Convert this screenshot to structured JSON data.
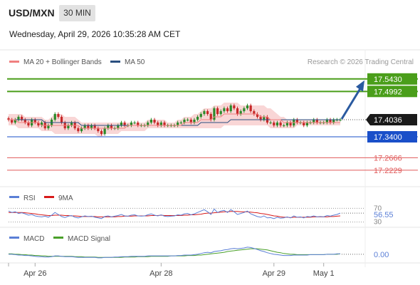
{
  "header": {
    "symbol": "USD/MXN",
    "interval": "30 MIN",
    "datetime": "Wednesday, April 29, 2026 10:35:28 AM CET"
  },
  "legend": {
    "ma20": "MA 20 + Bollinger Bands",
    "ma50": "MA 50",
    "copyright": "Research © 2026 Trading Central"
  },
  "colors": {
    "resistance": "#4a9e1a",
    "pivot": "#1a4fc9",
    "support": "#e05a5a",
    "ma20": "#f08080",
    "ma50": "#2a4f80",
    "band": "#f7c8c8",
    "candle_up": "#2a8a2a",
    "candle_down": "#c62828",
    "arrow": "#2a5aa0",
    "rsi": "#5b7fd6",
    "rsi_ma": "#d81b1b",
    "macd": "#5b7fd6",
    "macd_signal": "#4aa02a"
  },
  "chart_data": [
    {
      "type": "candlestick",
      "ylim": [
        17.18,
        17.57
      ],
      "current_price": "17.4036",
      "levels": [
        {
          "label": "17.5430",
          "value": 17.543,
          "kind": "resistance"
        },
        {
          "label": "17.4992",
          "value": 17.4992,
          "kind": "resistance"
        },
        {
          "label": "17.3400",
          "value": 17.34,
          "kind": "pivot"
        },
        {
          "label": "17.2666",
          "value": 17.2666,
          "kind": "support"
        },
        {
          "label": "17.2229",
          "value": 17.2229,
          "kind": "support"
        }
      ],
      "x_ticks": [
        "Apr 26",
        "Apr 28",
        "Apr 29",
        "May 1"
      ],
      "closes": [
        17.4,
        17.39,
        17.4,
        17.41,
        17.4,
        17.39,
        17.38,
        17.4,
        17.39,
        17.38,
        17.39,
        17.37,
        17.38,
        17.4,
        17.42,
        17.41,
        17.39,
        17.37,
        17.38,
        17.39,
        17.37,
        17.36,
        17.37,
        17.38,
        17.37,
        17.38,
        17.37,
        17.36,
        17.35,
        17.37,
        17.38,
        17.37,
        17.37,
        17.38,
        17.39,
        17.38,
        17.38,
        17.39,
        17.39,
        17.38,
        17.38,
        17.38,
        17.39,
        17.4,
        17.39,
        17.38,
        17.39,
        17.38,
        17.38,
        17.38,
        17.38,
        17.39,
        17.39,
        17.4,
        17.4,
        17.39,
        17.4,
        17.41,
        17.42,
        17.43,
        17.42,
        17.4,
        17.44,
        17.42,
        17.43,
        17.44,
        17.43,
        17.45,
        17.44,
        17.42,
        17.43,
        17.44,
        17.45,
        17.43,
        17.42,
        17.41,
        17.4,
        17.41,
        17.39,
        17.39,
        17.38,
        17.39,
        17.38,
        17.38,
        17.39,
        17.38,
        17.4,
        17.39,
        17.39,
        17.38,
        17.39,
        17.39,
        17.4,
        17.39,
        17.39,
        17.39,
        17.4,
        17.39,
        17.4,
        17.4,
        17.4
      ],
      "ma20_series": [
        17.4,
        17.4,
        17.4,
        17.39,
        17.39,
        17.39,
        17.39,
        17.39,
        17.39,
        17.39,
        17.38,
        17.38,
        17.38,
        17.38,
        17.38,
        17.38,
        17.38,
        17.38,
        17.38,
        17.38,
        17.38,
        17.38,
        17.37,
        17.37,
        17.37,
        17.37,
        17.37,
        17.37,
        17.37,
        17.37,
        17.37,
        17.37,
        17.37,
        17.37,
        17.37,
        17.37,
        17.38,
        17.38,
        17.38,
        17.38,
        17.38,
        17.38,
        17.38,
        17.38,
        17.38,
        17.38,
        17.38,
        17.38,
        17.38,
        17.38,
        17.38,
        17.38,
        17.38,
        17.39,
        17.39,
        17.39,
        17.39,
        17.39,
        17.4,
        17.4,
        17.4,
        17.4,
        17.41,
        17.41,
        17.41,
        17.42,
        17.42,
        17.42,
        17.42,
        17.42,
        17.42,
        17.42,
        17.42,
        17.42,
        17.42,
        17.42,
        17.41,
        17.41,
        17.41,
        17.4,
        17.4,
        17.4,
        17.4,
        17.39,
        17.39,
        17.39,
        17.39,
        17.39,
        17.39,
        17.39,
        17.39,
        17.39,
        17.39,
        17.39,
        17.39,
        17.39,
        17.39,
        17.39,
        17.39,
        17.39,
        17.39
      ],
      "ma50_series": [
        17.4,
        17.4,
        17.4,
        17.4,
        17.4,
        17.4,
        17.4,
        17.4,
        17.4,
        17.4,
        17.4,
        17.39,
        17.39,
        17.39,
        17.39,
        17.39,
        17.39,
        17.39,
        17.39,
        17.39,
        17.39,
        17.39,
        17.38,
        17.38,
        17.38,
        17.38,
        17.38,
        17.38,
        17.38,
        17.38,
        17.38,
        17.38,
        17.38,
        17.38,
        17.38,
        17.38,
        17.38,
        17.38,
        17.38,
        17.38,
        17.38,
        17.38,
        17.38,
        17.38,
        17.38,
        17.38,
        17.38,
        17.38,
        17.38,
        17.38,
        17.38,
        17.38,
        17.38,
        17.38,
        17.38,
        17.38,
        17.38,
        17.38,
        17.39,
        17.39,
        17.39,
        17.39,
        17.39,
        17.39,
        17.39,
        17.39,
        17.39,
        17.4,
        17.4,
        17.4,
        17.4,
        17.4,
        17.4,
        17.4,
        17.4,
        17.4,
        17.4,
        17.4,
        17.4,
        17.4,
        17.4,
        17.4,
        17.4,
        17.4,
        17.4,
        17.4,
        17.4,
        17.4,
        17.4,
        17.4,
        17.4,
        17.4,
        17.4,
        17.4,
        17.4,
        17.4,
        17.4,
        17.4,
        17.4,
        17.4,
        17.4
      ],
      "band_upper": [
        17.42,
        17.42,
        17.42,
        17.42,
        17.42,
        17.41,
        17.41,
        17.41,
        17.41,
        17.41,
        17.41,
        17.4,
        17.4,
        17.41,
        17.42,
        17.42,
        17.42,
        17.41,
        17.41,
        17.41,
        17.41,
        17.4,
        17.39,
        17.39,
        17.39,
        17.39,
        17.39,
        17.39,
        17.39,
        17.39,
        17.39,
        17.39,
        17.39,
        17.39,
        17.39,
        17.39,
        17.39,
        17.39,
        17.39,
        17.39,
        17.39,
        17.39,
        17.4,
        17.4,
        17.4,
        17.4,
        17.4,
        17.4,
        17.39,
        17.39,
        17.39,
        17.4,
        17.4,
        17.41,
        17.41,
        17.41,
        17.42,
        17.42,
        17.43,
        17.44,
        17.44,
        17.44,
        17.45,
        17.45,
        17.45,
        17.46,
        17.46,
        17.46,
        17.46,
        17.46,
        17.45,
        17.45,
        17.45,
        17.45,
        17.45,
        17.45,
        17.45,
        17.45,
        17.44,
        17.44,
        17.43,
        17.42,
        17.41,
        17.41,
        17.4,
        17.4,
        17.4,
        17.4,
        17.4,
        17.4,
        17.4,
        17.4,
        17.4,
        17.4,
        17.4,
        17.4,
        17.4,
        17.4,
        17.4,
        17.4,
        17.4
      ],
      "band_lower": [
        17.38,
        17.38,
        17.38,
        17.37,
        17.37,
        17.37,
        17.37,
        17.37,
        17.37,
        17.37,
        17.36,
        17.36,
        17.36,
        17.36,
        17.35,
        17.35,
        17.35,
        17.35,
        17.35,
        17.35,
        17.35,
        17.35,
        17.35,
        17.35,
        17.35,
        17.35,
        17.35,
        17.34,
        17.34,
        17.35,
        17.35,
        17.35,
        17.35,
        17.35,
        17.36,
        17.36,
        17.36,
        17.36,
        17.36,
        17.36,
        17.36,
        17.36,
        17.37,
        17.37,
        17.37,
        17.37,
        17.37,
        17.37,
        17.37,
        17.37,
        17.37,
        17.37,
        17.37,
        17.37,
        17.37,
        17.37,
        17.37,
        17.37,
        17.37,
        17.37,
        17.37,
        17.37,
        17.37,
        17.37,
        17.37,
        17.38,
        17.38,
        17.38,
        17.38,
        17.38,
        17.38,
        17.38,
        17.38,
        17.38,
        17.38,
        17.38,
        17.38,
        17.38,
        17.38,
        17.37,
        17.37,
        17.37,
        17.37,
        17.37,
        17.37,
        17.37,
        17.37,
        17.38,
        17.38,
        17.38,
        17.38,
        17.38,
        17.38,
        17.38,
        17.38,
        17.38,
        17.38,
        17.38,
        17.38,
        17.38,
        17.38
      ]
    },
    {
      "type": "line",
      "name": "RSI",
      "legend": [
        "RSI",
        "9MA"
      ],
      "ylim": [
        25,
        75
      ],
      "y_ticks": [
        "70",
        "30"
      ],
      "current_value": "56.55",
      "rsi_series": [
        62,
        58,
        60,
        55,
        57,
        54,
        50,
        52,
        48,
        46,
        45,
        47,
        44,
        50,
        58,
        52,
        46,
        43,
        47,
        49,
        44,
        42,
        45,
        48,
        46,
        47,
        44,
        42,
        40,
        46,
        48,
        45,
        47,
        49,
        52,
        48,
        47,
        50,
        51,
        48,
        47,
        48,
        51,
        54,
        50,
        48,
        51,
        47,
        46,
        47,
        48,
        51,
        50,
        54,
        55,
        51,
        54,
        58,
        62,
        66,
        60,
        52,
        68,
        58,
        62,
        64,
        58,
        66,
        60,
        52,
        55,
        58,
        62,
        54,
        50,
        46,
        44,
        48,
        42,
        43,
        40,
        44,
        41,
        42,
        45,
        42,
        48,
        44,
        45,
        42,
        46,
        45,
        48,
        45,
        46,
        45,
        49,
        47,
        50,
        52,
        56
      ],
      "rsi_ma_series": [
        58,
        58,
        58,
        58,
        58,
        57,
        56,
        55,
        54,
        52,
        51,
        50,
        49,
        49,
        50,
        50,
        50,
        49,
        49,
        48,
        48,
        47,
        46,
        46,
        46,
        46,
        46,
        45,
        45,
        45,
        45,
        45,
        45,
        46,
        46,
        47,
        47,
        47,
        48,
        48,
        48,
        48,
        48,
        49,
        49,
        49,
        50,
        49,
        49,
        49,
        49,
        49,
        49,
        50,
        50,
        51,
        51,
        52,
        53,
        55,
        56,
        56,
        57,
        58,
        59,
        60,
        60,
        61,
        61,
        61,
        60,
        60,
        60,
        59,
        58,
        57,
        55,
        54,
        52,
        50,
        48,
        47,
        45,
        44,
        44,
        43,
        44,
        44,
        44,
        44,
        44,
        44,
        45,
        45,
        45,
        45,
        45,
        46,
        46,
        47,
        48
      ]
    },
    {
      "type": "line",
      "name": "MACD",
      "legend": [
        "MACD",
        "MACD Signal"
      ],
      "ylim": [
        -0.02,
        0.025
      ],
      "current_value": "0.00",
      "macd_series": [
        0.0,
        0.0,
        -0.001,
        -0.002,
        -0.002,
        -0.003,
        -0.003,
        -0.004,
        -0.005,
        -0.006,
        -0.006,
        -0.007,
        -0.007,
        -0.006,
        -0.004,
        -0.004,
        -0.005,
        -0.006,
        -0.006,
        -0.006,
        -0.007,
        -0.008,
        -0.008,
        -0.008,
        -0.008,
        -0.008,
        -0.008,
        -0.009,
        -0.009,
        -0.008,
        -0.008,
        -0.008,
        -0.007,
        -0.007,
        -0.006,
        -0.006,
        -0.006,
        -0.005,
        -0.005,
        -0.005,
        -0.005,
        -0.005,
        -0.004,
        -0.004,
        -0.004,
        -0.004,
        -0.004,
        -0.004,
        -0.004,
        -0.004,
        -0.004,
        -0.003,
        -0.003,
        -0.002,
        -0.002,
        -0.002,
        -0.001,
        0.0,
        0.002,
        0.004,
        0.005,
        0.004,
        0.007,
        0.008,
        0.009,
        0.011,
        0.012,
        0.014,
        0.015,
        0.014,
        0.015,
        0.016,
        0.018,
        0.017,
        0.015,
        0.012,
        0.009,
        0.007,
        0.004,
        0.002,
        0.0,
        -0.001,
        -0.002,
        -0.003,
        -0.003,
        -0.003,
        -0.002,
        -0.002,
        -0.002,
        -0.002,
        -0.002,
        -0.001,
        -0.001,
        -0.001,
        -0.001,
        -0.001,
        0.0,
        0.0,
        0.0,
        0.001,
        0.001
      ],
      "signal_series": [
        0.001,
        0.001,
        0.0,
        0.0,
        -0.001,
        -0.001,
        -0.002,
        -0.002,
        -0.003,
        -0.003,
        -0.004,
        -0.004,
        -0.005,
        -0.005,
        -0.005,
        -0.005,
        -0.005,
        -0.005,
        -0.005,
        -0.005,
        -0.006,
        -0.006,
        -0.006,
        -0.007,
        -0.007,
        -0.007,
        -0.007,
        -0.008,
        -0.008,
        -0.008,
        -0.008,
        -0.008,
        -0.008,
        -0.008,
        -0.008,
        -0.007,
        -0.007,
        -0.007,
        -0.007,
        -0.006,
        -0.006,
        -0.006,
        -0.006,
        -0.005,
        -0.005,
        -0.005,
        -0.005,
        -0.005,
        -0.005,
        -0.004,
        -0.004,
        -0.004,
        -0.004,
        -0.004,
        -0.003,
        -0.003,
        -0.003,
        -0.002,
        -0.002,
        -0.001,
        0.0,
        0.001,
        0.002,
        0.003,
        0.004,
        0.005,
        0.007,
        0.008,
        0.009,
        0.01,
        0.011,
        0.012,
        0.013,
        0.014,
        0.014,
        0.014,
        0.013,
        0.012,
        0.011,
        0.009,
        0.007,
        0.005,
        0.004,
        0.002,
        0.001,
        0.0,
        0.0,
        -0.001,
        -0.001,
        -0.001,
        -0.001,
        -0.001,
        -0.001,
        -0.001,
        -0.001,
        -0.001,
        0.0,
        0.0,
        0.0,
        0.0,
        0.001
      ]
    }
  ]
}
